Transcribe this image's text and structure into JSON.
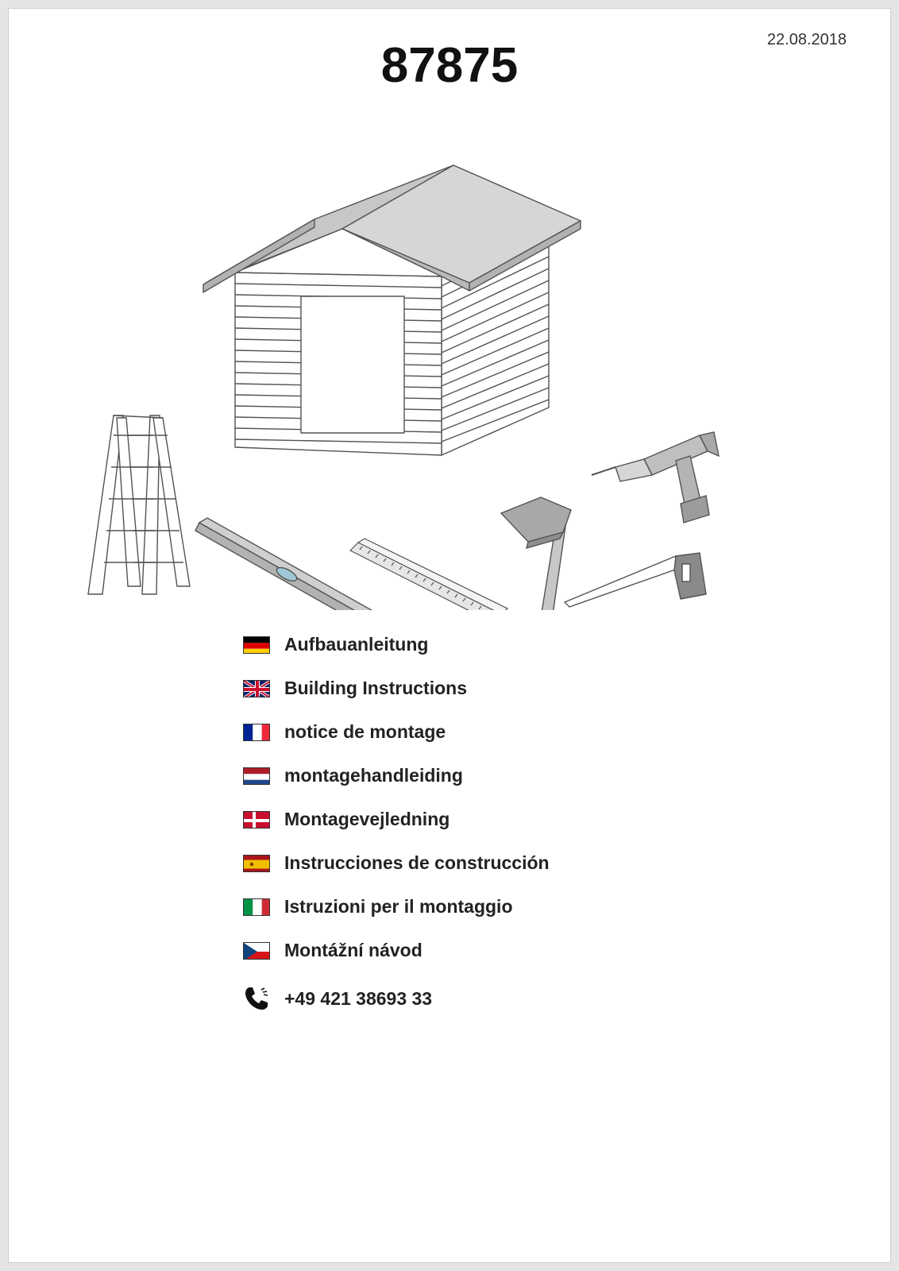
{
  "date": "22.08.2018",
  "product_number": "87875",
  "phone": "+49 421 38693 33",
  "colors": {
    "page_bg": "#ffffff",
    "outer_bg": "#e5e5e5",
    "stroke": "#535353",
    "fill_light": "#d9d9d9",
    "fill_mid": "#b9b9b9",
    "fill_dark": "#a1a1a1",
    "text": "#222222"
  },
  "illustration": {
    "type": "infographic",
    "items": [
      "shed",
      "ladder",
      "spirit-level",
      "folding-ruler",
      "hammer",
      "handsaw",
      "drill"
    ]
  },
  "languages": [
    {
      "flag": "de",
      "label": "Aufbauanleitung"
    },
    {
      "flag": "gb",
      "label": "Building Instructions"
    },
    {
      "flag": "fr",
      "label": "notice de montage"
    },
    {
      "flag": "nl",
      "label": "montagehandleiding"
    },
    {
      "flag": "dk",
      "label": "Montagevejledning"
    },
    {
      "flag": "es",
      "label": "Instrucciones de construcción"
    },
    {
      "flag": "it",
      "label": "Istruzioni per il montaggio"
    },
    {
      "flag": "cz",
      "label": "Montážní návod"
    }
  ],
  "flags": {
    "de": {
      "stripes": [
        "#000000",
        "#dd0000",
        "#ffce00"
      ],
      "type": "h3"
    },
    "gb": {
      "type": "uk"
    },
    "fr": {
      "stripes": [
        "#002395",
        "#ffffff",
        "#ed2939"
      ],
      "type": "v3"
    },
    "nl": {
      "stripes": [
        "#ae1c28",
        "#ffffff",
        "#21468b"
      ],
      "type": "h3"
    },
    "dk": {
      "type": "dk"
    },
    "es": {
      "type": "es"
    },
    "it": {
      "stripes": [
        "#009246",
        "#ffffff",
        "#ce2b37"
      ],
      "type": "v3"
    },
    "cz": {
      "type": "cz"
    }
  }
}
